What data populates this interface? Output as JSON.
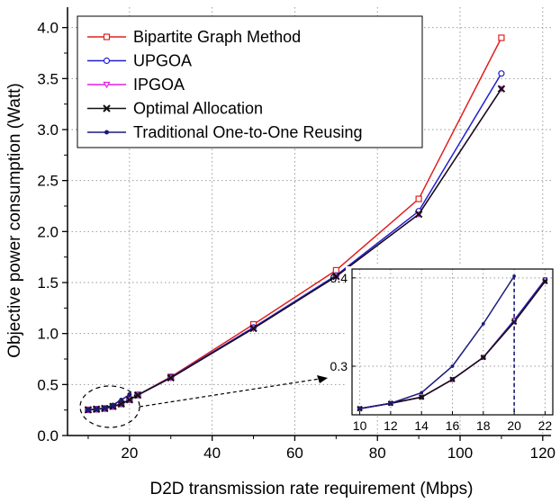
{
  "chart_data": {
    "type": "line",
    "xlabel": "D2D transmission rate requirement (Mbps)",
    "ylabel": "Objective power consumption (Watt)",
    "xlim": [
      5,
      122
    ],
    "ylim": [
      0,
      4.2
    ],
    "xticks": [
      "20",
      "40",
      "60",
      "80",
      "100",
      "120"
    ],
    "yticks": [
      "0.0",
      "0.5",
      "1.0",
      "1.5",
      "2.0",
      "2.5",
      "3.0",
      "3.5",
      "4.0"
    ],
    "legend_position": "top-left",
    "grid": true,
    "series": [
      {
        "name": "Bipartite Graph Method",
        "color": "#e02020",
        "marker": "square",
        "x": [
          10,
          12,
          14,
          16,
          18,
          20,
          22,
          30,
          50,
          70,
          90,
          110
        ],
        "y": [
          0.252,
          0.258,
          0.265,
          0.285,
          0.31,
          0.352,
          0.398,
          0.575,
          1.09,
          1.62,
          2.32,
          3.9
        ]
      },
      {
        "name": "UPGOA",
        "color": "#1f1fd0",
        "marker": "circle",
        "x": [
          10,
          12,
          14,
          16,
          18,
          20,
          22,
          30,
          50,
          70,
          90,
          110
        ],
        "y": [
          0.252,
          0.258,
          0.265,
          0.285,
          0.31,
          0.352,
          0.398,
          0.57,
          1.06,
          1.57,
          2.2,
          3.55
        ]
      },
      {
        "name": "IPGOA",
        "color": "#e020e0",
        "marker": "triangle-down",
        "x": [
          10,
          12,
          14,
          16,
          18,
          20,
          22,
          30,
          50,
          70,
          90,
          110
        ],
        "y": [
          0.252,
          0.258,
          0.265,
          0.285,
          0.31,
          0.35,
          0.396,
          0.565,
          1.05,
          1.56,
          2.17,
          3.4
        ]
      },
      {
        "name": "Optimal Allocation",
        "color": "#111111",
        "marker": "x",
        "x": [
          10,
          12,
          14,
          16,
          18,
          20,
          22,
          30,
          50,
          70,
          90,
          110
        ],
        "y": [
          0.252,
          0.258,
          0.265,
          0.285,
          0.31,
          0.35,
          0.396,
          0.565,
          1.05,
          1.56,
          2.17,
          3.4
        ]
      },
      {
        "name": "Traditional One-to-One Reusing",
        "color": "#1a1a7a",
        "marker": "dot",
        "x": [
          10,
          12,
          14,
          16,
          18,
          20
        ],
        "y": [
          0.252,
          0.258,
          0.27,
          0.3,
          0.348,
          0.402
        ]
      }
    ],
    "inset": {
      "xlim": [
        9.5,
        22.5
      ],
      "ylim": [
        0.245,
        0.41
      ],
      "xticks": [
        "10",
        "12",
        "14",
        "16",
        "18",
        "20",
        "22"
      ],
      "yticks": [
        "0.3",
        "0.4"
      ],
      "grid": true,
      "marker_x": 20,
      "marker_y": 0.402
    }
  }
}
